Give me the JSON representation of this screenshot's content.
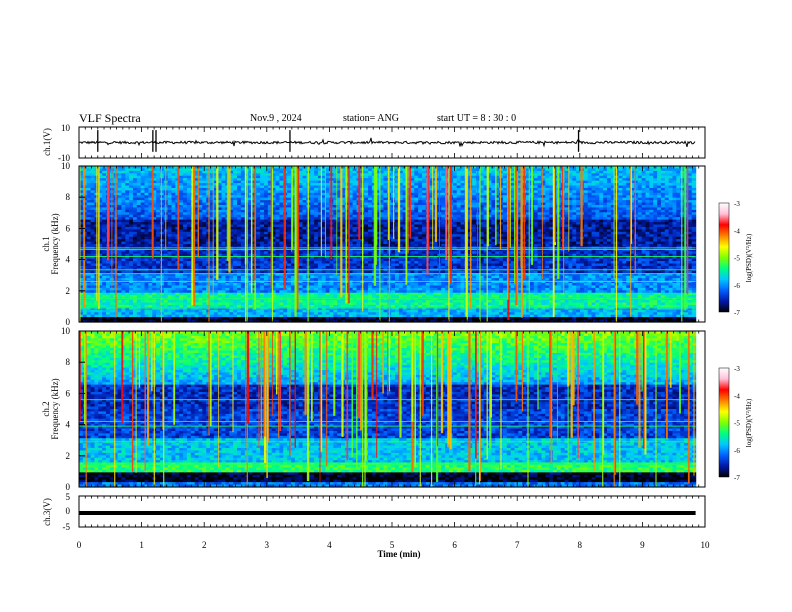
{
  "header": {
    "title": "VLF Spectra",
    "date": "Nov.9  , 2024",
    "station": "station= ANG",
    "start_ut": "start  UT =   8  : 30 : 0"
  },
  "chart_data": [
    {
      "type": "line",
      "panel": "ch1-waveform",
      "ylabel": "ch.1(V)",
      "ylim": [
        -10,
        10
      ],
      "yticks": [
        "10",
        "-10"
      ],
      "xlim": [
        0,
        10
      ],
      "baseline": 0,
      "color": "#000000"
    },
    {
      "type": "heatmap",
      "panel": "ch1-spectrogram",
      "ylabel_line1": "ch.1",
      "ylabel_line2": "Frequency (kHz)",
      "ylim": [
        0,
        10
      ],
      "yticks": [
        "0",
        "2",
        "4",
        "6",
        "8",
        "10"
      ],
      "xlim": [
        0,
        9.85
      ],
      "colorbar": {
        "label": "log(PSD)(V²/Hz)",
        "range": [
          -7,
          -3
        ],
        "ticks": [
          "-3",
          "-4",
          "-5",
          "-6",
          "-7"
        ],
        "colors": [
          "#000000",
          "#0018a8",
          "#0060ff",
          "#00c8ff",
          "#00ff80",
          "#80ff00",
          "#ffff00",
          "#ff8000",
          "#ff0000",
          "#ffc0d8",
          "#ffffff"
        ]
      }
    },
    {
      "type": "heatmap",
      "panel": "ch2-spectrogram",
      "ylabel_line1": "ch.2",
      "ylabel_line2": "Frequency (kHz)",
      "ylim": [
        0,
        10
      ],
      "yticks": [
        "0",
        "2",
        "4",
        "6",
        "8",
        "10"
      ],
      "xlim": [
        0,
        9.85
      ],
      "colorbar": {
        "label": "log(PSD)(V²/Hz)",
        "range": [
          -7,
          -3
        ],
        "ticks": [
          "-3",
          "-4",
          "-5",
          "-6",
          "-7"
        ],
        "colors": [
          "#000000",
          "#0018a8",
          "#0060ff",
          "#00c8ff",
          "#00ff80",
          "#80ff00",
          "#ffff00",
          "#ff8000",
          "#ff0000",
          "#ffc0d8",
          "#ffffff"
        ]
      }
    },
    {
      "type": "line",
      "panel": "ch3-waveform",
      "ylabel": "ch.3(V)",
      "ylim": [
        -5,
        5
      ],
      "yticks": [
        "5",
        "0",
        "-5"
      ],
      "xlim": [
        0,
        10
      ],
      "baseline": -0.5,
      "color": "#000000"
    }
  ],
  "x_axis": {
    "label": "Time  (min)",
    "ticks": [
      "0",
      "1",
      "2",
      "3",
      "4",
      "5",
      "6",
      "7",
      "8",
      "9",
      "10"
    ]
  }
}
